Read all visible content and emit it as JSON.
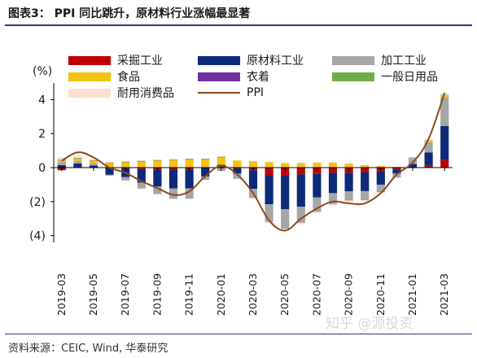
{
  "header": {
    "title": "图表3：  PPI 同比跳升，原材料行业涨幅最显著"
  },
  "footer": {
    "source": "资料来源：CEIC, Wind, 华泰研究"
  },
  "watermark": {
    "text": "知乎 @源投资"
  },
  "colors": {
    "caicai": "#c00000",
    "yuancailiao": "#0d2a7a",
    "jiagong": "#a6a6a6",
    "shipin": "#f5c211",
    "yizhuo": "#7030a0",
    "riyong": "#70ad47",
    "naiyong": "#fbe0d2",
    "ppi": "#8a4a1e"
  },
  "chart_data": {
    "type": "bar",
    "subtype": "stacked bar with line",
    "unit_label": "(%)",
    "ylim": [
      -4.4,
      4.5
    ],
    "yticks": [
      4,
      2,
      0,
      -2,
      -4
    ],
    "ytick_labels": [
      "4",
      "2",
      "0",
      "(2)",
      "(4)"
    ],
    "x": [
      "2019-03",
      "2019-04",
      "2019-05",
      "2019-06",
      "2019-07",
      "2019-08",
      "2019-09",
      "2019-10",
      "2019-11",
      "2019-12",
      "2020-01",
      "2020-02",
      "2020-03",
      "2020-04",
      "2020-05",
      "2020-06",
      "2020-07",
      "2020-08",
      "2020-09",
      "2020-10",
      "2020-11",
      "2020-12",
      "2021-01",
      "2021-02",
      "2021-03"
    ],
    "xtick_labels": [
      "2019-03",
      "2019-05",
      "2019-07",
      "2019-09",
      "2019-11",
      "2020-01",
      "2020-03",
      "2020-05",
      "2020-07",
      "2020-09",
      "2020-11",
      "2021-01",
      "2021-03"
    ],
    "series": [
      {
        "name": "采掘工业",
        "key": "caicai",
        "kind": "bar",
        "values": [
          -0.15,
          0.05,
          0.02,
          -0.02,
          -0.05,
          -0.08,
          -0.1,
          -0.12,
          -0.12,
          -0.02,
          0.15,
          -0.05,
          -0.15,
          -0.45,
          -0.45,
          -0.4,
          -0.35,
          -0.3,
          -0.3,
          -0.28,
          -0.2,
          -0.1,
          0.02,
          0.15,
          0.45
        ]
      },
      {
        "name": "原材料工业",
        "key": "yuancailiao",
        "kind": "bar",
        "values": [
          0.15,
          0.2,
          0.1,
          -0.4,
          -0.5,
          -0.8,
          -1.0,
          -1.1,
          -1.1,
          -0.5,
          0.02,
          -0.3,
          -1.1,
          -1.7,
          -2.0,
          -1.9,
          -1.4,
          -1.2,
          -1.1,
          -1.1,
          -0.8,
          -0.25,
          0.2,
          0.75,
          2.0
        ]
      },
      {
        "name": "加工工业",
        "key": "jiagong",
        "kind": "bar",
        "values": [
          0.2,
          0.15,
          0.12,
          -0.05,
          -0.2,
          -0.35,
          -0.45,
          -0.6,
          -0.6,
          -0.2,
          -0.2,
          -0.3,
          -0.5,
          -1.0,
          -1.1,
          -0.9,
          -0.8,
          -0.6,
          -0.5,
          -0.5,
          -0.4,
          -0.2,
          0.35,
          0.6,
          1.7
        ]
      },
      {
        "name": "食品",
        "key": "shipin",
        "kind": "bar",
        "values": [
          0.1,
          0.15,
          0.18,
          0.28,
          0.33,
          0.38,
          0.43,
          0.45,
          0.5,
          0.5,
          0.45,
          0.42,
          0.38,
          0.33,
          0.27,
          0.28,
          0.3,
          0.3,
          0.25,
          0.15,
          0.1,
          0.05,
          0.05,
          0.1,
          0.12
        ]
      },
      {
        "name": "衣着",
        "key": "yizhuo",
        "kind": "bar",
        "values": [
          0.01,
          0.01,
          0.01,
          0.01,
          0.01,
          0.01,
          0.01,
          0.01,
          0.01,
          0.01,
          0.01,
          0.0,
          -0.01,
          -0.02,
          -0.02,
          -0.02,
          -0.02,
          -0.02,
          -0.02,
          -0.02,
          -0.02,
          -0.01,
          0.0,
          0.0,
          0.0
        ]
      },
      {
        "name": "一般日用品",
        "key": "riyong",
        "kind": "bar",
        "values": [
          0.01,
          0.01,
          0.01,
          0.01,
          0.01,
          0.01,
          0.01,
          0.01,
          0.01,
          0.01,
          0.01,
          0.0,
          0.0,
          -0.01,
          -0.01,
          -0.01,
          -0.01,
          -0.01,
          -0.01,
          -0.01,
          -0.01,
          0.0,
          0.0,
          0.01,
          0.01
        ]
      },
      {
        "name": "耐用消费品",
        "key": "naiyong",
        "kind": "bar",
        "values": [
          0.15,
          0.15,
          0.1,
          0.05,
          0.0,
          -0.05,
          -0.05,
          -0.05,
          -0.05,
          -0.02,
          -0.02,
          -0.05,
          -0.08,
          -0.1,
          -0.1,
          -0.1,
          -0.1,
          -0.1,
          -0.1,
          -0.1,
          -0.1,
          -0.05,
          0.02,
          0.05,
          0.1
        ]
      },
      {
        "name": "PPI",
        "key": "ppi",
        "kind": "line",
        "values": [
          0.4,
          0.9,
          0.6,
          0.0,
          -0.3,
          -0.8,
          -1.2,
          -1.6,
          -1.4,
          -0.5,
          0.1,
          -0.4,
          -1.5,
          -3.1,
          -3.7,
          -3.0,
          -2.4,
          -2.0,
          -2.1,
          -2.1,
          -1.5,
          -0.4,
          0.3,
          1.7,
          4.4
        ]
      }
    ],
    "legend": {
      "placement": "top",
      "columns": 3
    }
  }
}
